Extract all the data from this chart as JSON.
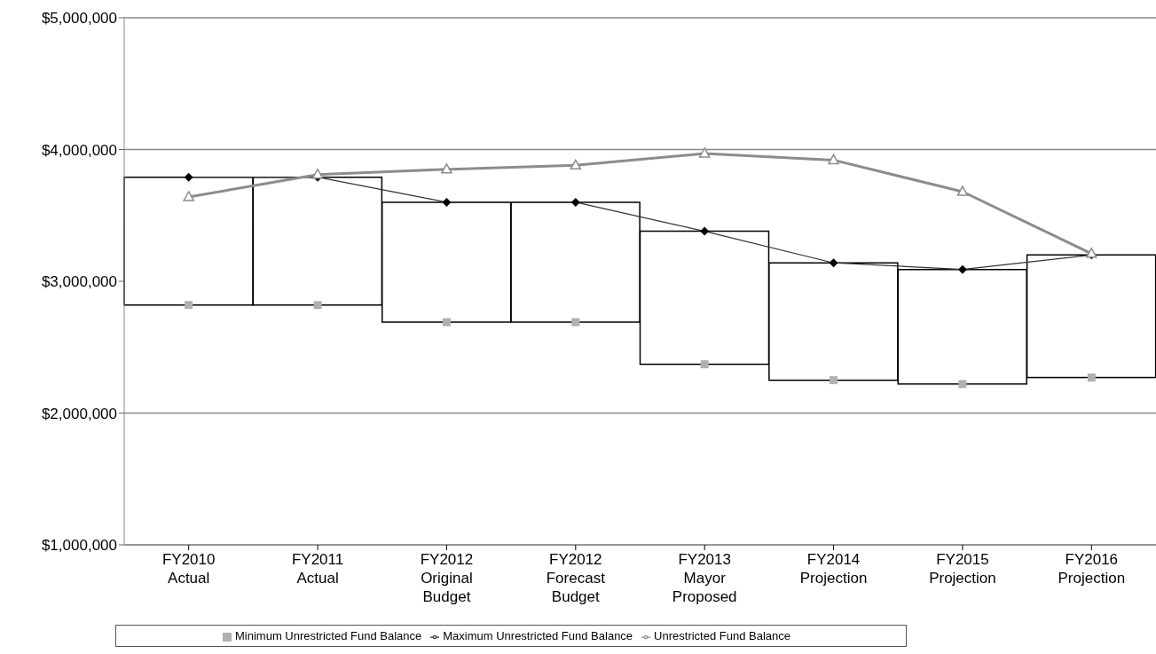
{
  "chart_data": {
    "type": "line",
    "categories": [
      "FY2010 Actual",
      "FY2011 Actual",
      "FY2012 Original Budget",
      "FY2012 Forecast Budget",
      "FY2013 Mayor Proposed",
      "FY2014 Projection",
      "FY2015 Projection",
      "FY2016 Projection"
    ],
    "series": [
      {
        "type": "bar",
        "color": "#ffffff",
        "base": [
          2820000,
          2820000,
          2690000,
          2690000,
          2370000,
          2250000,
          2220000,
          2270000
        ],
        "values": [
          970000,
          970000,
          910000,
          910000,
          1010000,
          890000,
          870000,
          930000
        ]
      },
      {
        "type": "scatter",
        "name": "Minimum Unrestricted Fund Balance",
        "color": "#b0b0b0",
        "marker": "square",
        "values": [
          2820000,
          2820000,
          2690000,
          2690000,
          2370000,
          2250000,
          2220000,
          2270000
        ]
      },
      {
        "type": "line",
        "name": "Maximum Unrestricted Fund Balance",
        "color": "#333333",
        "marker": "diamond",
        "values": [
          3790000,
          3790000,
          3600000,
          3600000,
          3380000,
          3140000,
          3090000,
          3200000
        ]
      },
      {
        "name": "Unrestricted Fund Balance",
        "color": "#8c8c8c",
        "marker": "triangle",
        "values": [
          3640000,
          3810000,
          3850000,
          3880000,
          3970000,
          3920000,
          3680000,
          3210000
        ]
      }
    ],
    "ylim": [
      1000000,
      5000000
    ],
    "yticks": [
      {
        "value": 1000000,
        "label": "$1,000,000"
      },
      {
        "value": 2000000,
        "label": "$2,000,000"
      },
      {
        "value": 3000000,
        "label": "$3,000,000"
      },
      {
        "value": 4000000,
        "label": "$4,000,000"
      },
      {
        "value": 5000000,
        "label": "$5,000,000"
      }
    ],
    "grid": "y",
    "legend": "bottom"
  }
}
